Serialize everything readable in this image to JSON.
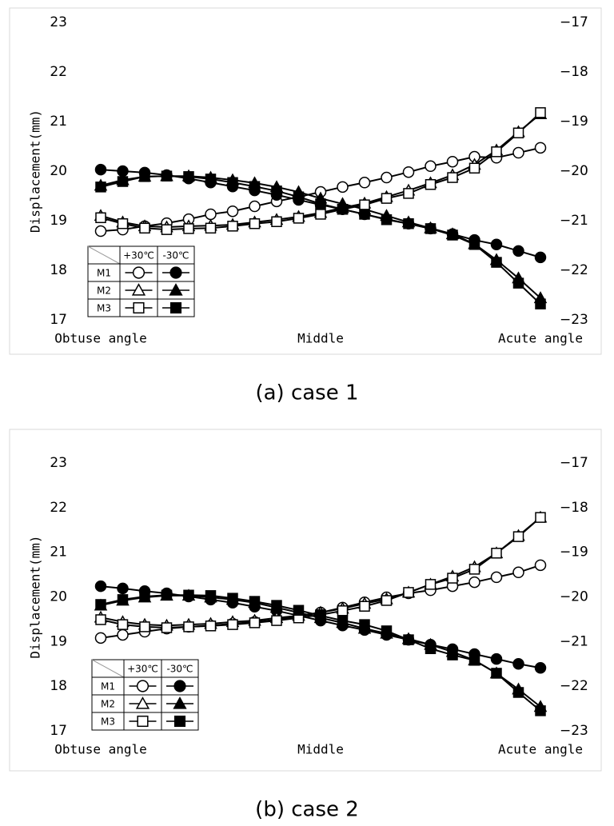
{
  "chart_data": [
    {
      "type": "line",
      "caption": "(a) case 1",
      "ylabel": "Displacement(mm)",
      "categories": [
        "Obtuse angle",
        null,
        null,
        null,
        null,
        null,
        null,
        null,
        null,
        null,
        "Middle",
        null,
        null,
        null,
        null,
        null,
        null,
        null,
        null,
        null,
        "Acute angle"
      ],
      "ylim": [
        17,
        23
      ],
      "yticks": [
        17,
        18,
        19,
        20,
        21,
        22,
        23
      ],
      "y2lim": [
        -23,
        -17
      ],
      "y2ticks": [
        {
          "value": -23,
          "label": "−23"
        },
        {
          "value": -22,
          "label": "−22"
        },
        {
          "value": -21,
          "label": "−21"
        },
        {
          "value": -20,
          "label": "−20"
        },
        {
          "value": -19,
          "label": "−19"
        },
        {
          "value": -18,
          "label": "−18"
        },
        {
          "value": -17,
          "label": "−17"
        }
      ],
      "series": [
        {
          "name": "M1",
          "temperature": "+30℃",
          "marker": "circle",
          "color": "#000000",
          "fill": "#ffffff",
          "values": [
            18.79,
            18.82,
            18.89,
            18.95,
            19.03,
            19.13,
            19.19,
            19.29,
            19.39,
            19.48,
            19.58,
            19.68,
            19.77,
            19.87,
            19.98,
            20.1,
            20.19,
            20.29,
            20.27,
            20.37,
            20.47
          ]
        },
        {
          "name": "M1",
          "temperature": "-30℃",
          "marker": "circle",
          "color": "#000000",
          "fill": "#000000",
          "values": [
            20.03,
            20.0,
            19.97,
            19.92,
            19.85,
            19.77,
            19.69,
            19.61,
            19.52,
            19.42,
            19.32,
            19.23,
            19.13,
            19.03,
            18.94,
            18.84,
            18.73,
            18.61,
            18.52,
            18.39,
            18.26
          ]
        },
        {
          "name": "M2",
          "temperature": "+30℃",
          "marker": "triangle",
          "color": "#000000",
          "fill": "#ffffff",
          "values": [
            19.1,
            18.97,
            18.89,
            18.87,
            18.89,
            18.9,
            18.92,
            18.97,
            19.02,
            19.08,
            19.16,
            19.26,
            19.35,
            19.48,
            19.61,
            19.76,
            19.92,
            20.13,
            20.42,
            20.79,
            21.15
          ]
        },
        {
          "name": "M2",
          "temperature": "-30℃",
          "marker": "triangle",
          "color": "#000000",
          "fill": "#000000",
          "values": [
            19.71,
            19.82,
            19.89,
            19.9,
            19.9,
            19.87,
            19.82,
            19.76,
            19.68,
            19.58,
            19.45,
            19.34,
            19.23,
            19.1,
            18.97,
            18.85,
            18.73,
            18.53,
            18.21,
            17.84,
            17.44
          ]
        },
        {
          "name": "M3",
          "temperature": "+30℃",
          "marker": "square",
          "color": "#000000",
          "fill": "#ffffff",
          "values": [
            19.06,
            18.94,
            18.85,
            18.82,
            18.84,
            18.85,
            18.89,
            18.94,
            18.98,
            19.05,
            19.13,
            19.23,
            19.32,
            19.45,
            19.55,
            19.73,
            19.87,
            20.06,
            20.39,
            20.77,
            21.18
          ]
        },
        {
          "name": "M3",
          "temperature": "-30℃",
          "marker": "square",
          "color": "#000000",
          "fill": "#000000",
          "values": [
            19.68,
            19.79,
            19.89,
            19.9,
            19.89,
            19.84,
            19.77,
            19.69,
            19.6,
            19.48,
            19.34,
            19.23,
            19.13,
            19.02,
            18.94,
            18.84,
            18.71,
            18.52,
            18.16,
            17.74,
            17.32
          ]
        }
      ]
    },
    {
      "type": "line",
      "caption": "(b) case 2",
      "ylabel": "Displacement(mm)",
      "categories": [
        "Obtuse angle",
        null,
        null,
        null,
        null,
        null,
        null,
        null,
        null,
        null,
        "Middle",
        null,
        null,
        null,
        null,
        null,
        null,
        null,
        null,
        null,
        "Acute angle"
      ],
      "ylim": [
        17,
        23
      ],
      "yticks": [
        17,
        18,
        19,
        20,
        21,
        22,
        23
      ],
      "y2lim": [
        -23,
        -17
      ],
      "y2ticks": [
        {
          "value": -23,
          "label": "−23"
        },
        {
          "value": -22,
          "label": "−22"
        },
        {
          "value": -21,
          "label": "−21"
        },
        {
          "value": -20,
          "label": "−20"
        },
        {
          "value": -19,
          "label": "−19"
        },
        {
          "value": -18,
          "label": "−18"
        },
        {
          "value": -17,
          "label": "−17"
        }
      ],
      "series": [
        {
          "name": "M1",
          "temperature": "+30℃",
          "marker": "circle",
          "color": "#000000",
          "fill": "#ffffff",
          "values": [
            19.08,
            19.15,
            19.22,
            19.29,
            19.33,
            19.36,
            19.4,
            19.44,
            19.49,
            19.56,
            19.65,
            19.76,
            19.88,
            19.99,
            20.08,
            20.15,
            20.24,
            20.33,
            20.44,
            20.55,
            20.71
          ]
        },
        {
          "name": "M1",
          "temperature": "-30℃",
          "marker": "circle",
          "color": "#000000",
          "fill": "#000000",
          "values": [
            20.24,
            20.19,
            20.13,
            20.08,
            20.01,
            19.94,
            19.87,
            19.78,
            19.69,
            19.58,
            19.47,
            19.36,
            19.26,
            19.15,
            19.04,
            18.93,
            18.83,
            18.72,
            18.61,
            18.5,
            18.41
          ]
        },
        {
          "name": "M2",
          "temperature": "+30℃",
          "marker": "triangle",
          "color": "#000000",
          "fill": "#ffffff",
          "values": [
            19.54,
            19.44,
            19.38,
            19.36,
            19.38,
            19.4,
            19.44,
            19.47,
            19.53,
            19.58,
            19.65,
            19.74,
            19.85,
            19.95,
            20.1,
            20.28,
            20.46,
            20.67,
            20.98,
            21.37,
            21.78
          ]
        },
        {
          "name": "M2",
          "temperature": "-30℃",
          "marker": "triangle",
          "color": "#000000",
          "fill": "#000000",
          "values": [
            19.81,
            19.92,
            19.99,
            20.03,
            20.03,
            19.99,
            19.94,
            19.87,
            19.76,
            19.65,
            19.53,
            19.42,
            19.29,
            19.18,
            19.06,
            18.93,
            18.77,
            18.58,
            18.29,
            17.93,
            17.54
          ]
        },
        {
          "name": "M3",
          "temperature": "+30℃",
          "marker": "square",
          "color": "#000000",
          "fill": "#ffffff",
          "values": [
            19.49,
            19.38,
            19.33,
            19.31,
            19.33,
            19.35,
            19.38,
            19.42,
            19.47,
            19.53,
            19.6,
            19.69,
            19.79,
            19.92,
            20.1,
            20.28,
            20.42,
            20.62,
            20.98,
            21.35,
            21.78
          ]
        },
        {
          "name": "M3",
          "temperature": "-30℃",
          "marker": "square",
          "color": "#000000",
          "fill": "#000000",
          "values": [
            19.83,
            19.94,
            20.01,
            20.04,
            20.04,
            20.03,
            19.97,
            19.9,
            19.81,
            19.7,
            19.58,
            19.47,
            19.38,
            19.24,
            19.04,
            18.84,
            18.7,
            18.58,
            18.29,
            17.86,
            17.45
          ]
        }
      ]
    }
  ]
}
